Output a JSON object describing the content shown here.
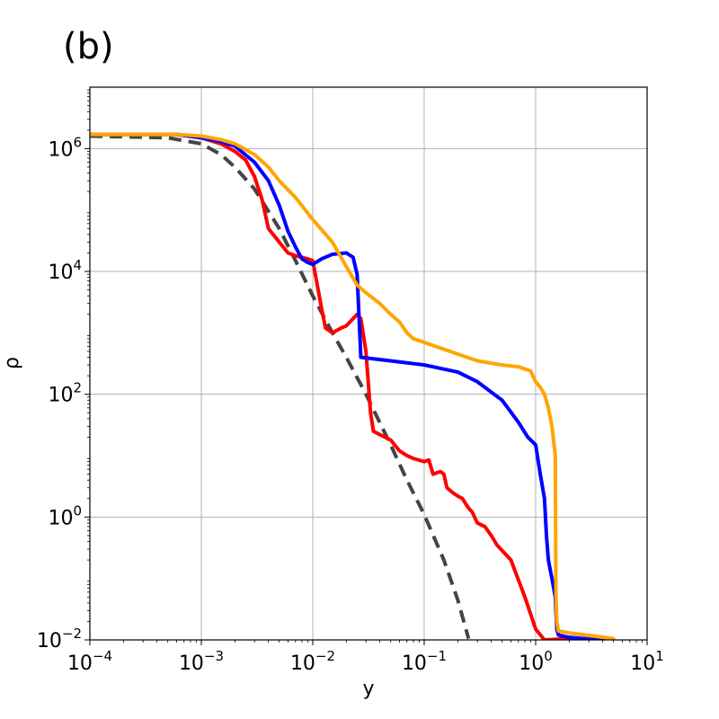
{
  "panel_label": "(b)",
  "chart_data": {
    "type": "line",
    "xlabel": "y",
    "ylabel": "ρ",
    "xscale": "log",
    "yscale": "log",
    "xlim": [
      0.0001,
      10
    ],
    "ylim": [
      0.01,
      10000000
    ],
    "grid": true,
    "x_ticks": [
      {
        "base": "10",
        "exp": "−4",
        "value": 0.0001
      },
      {
        "base": "10",
        "exp": "−3",
        "value": 0.001
      },
      {
        "base": "10",
        "exp": "−2",
        "value": 0.01
      },
      {
        "base": "10",
        "exp": "−1",
        "value": 0.1
      },
      {
        "base": "10",
        "exp": "0",
        "value": 1
      },
      {
        "base": "10",
        "exp": "1",
        "value": 10
      }
    ],
    "y_ticks": [
      {
        "base": "10",
        "exp": "−2",
        "value": 0.01
      },
      {
        "base": "10",
        "exp": "0",
        "value": 1
      },
      {
        "base": "10",
        "exp": "2",
        "value": 100
      },
      {
        "base": "10",
        "exp": "4",
        "value": 10000
      },
      {
        "base": "10",
        "exp": "6",
        "value": 1000000
      }
    ],
    "series": [
      {
        "color": "#444444",
        "dashed": true,
        "points": [
          [
            0.0001,
            1600000.0
          ],
          [
            0.0005,
            1500000.0
          ],
          [
            0.001,
            1200000.0
          ],
          [
            0.0015,
            800000.0
          ],
          [
            0.002,
            500000.0
          ],
          [
            0.003,
            220000.0
          ],
          [
            0.005,
            50000.0
          ],
          [
            0.007,
            15000.0
          ],
          [
            0.01,
            4000
          ],
          [
            0.015,
            1000
          ],
          [
            0.02,
            400
          ],
          [
            0.03,
            100
          ],
          [
            0.05,
            15
          ],
          [
            0.07,
            4
          ],
          [
            0.1,
            1.1
          ],
          [
            0.15,
            0.2
          ],
          [
            0.2,
            0.045
          ],
          [
            0.25,
            0.0105
          ]
        ]
      },
      {
        "color": "#ff0000",
        "dashed": false,
        "points": [
          [
            0.0001,
            1700000.0
          ],
          [
            0.0006,
            1700000.0
          ],
          [
            0.001,
            1500000.0
          ],
          [
            0.0015,
            1200000.0
          ],
          [
            0.002,
            900000.0
          ],
          [
            0.0025,
            650000.0
          ],
          [
            0.003,
            350000.0
          ],
          [
            0.0035,
            150000.0
          ],
          [
            0.004,
            50000.0
          ],
          [
            0.005,
            30000.0
          ],
          [
            0.006,
            20000.0
          ],
          [
            0.007,
            18000.0
          ],
          [
            0.008,
            17000.0
          ],
          [
            0.009,
            16000.0
          ],
          [
            0.01,
            15000.0
          ],
          [
            0.012,
            2500
          ],
          [
            0.013,
            1200
          ],
          [
            0.015,
            1000
          ],
          [
            0.018,
            1200
          ],
          [
            0.02,
            1300
          ],
          [
            0.025,
            2000
          ],
          [
            0.027,
            1700
          ],
          [
            0.03,
            500
          ],
          [
            0.033,
            50
          ],
          [
            0.035,
            25
          ],
          [
            0.04,
            22
          ],
          [
            0.05,
            18
          ],
          [
            0.06,
            12
          ],
          [
            0.07,
            10
          ],
          [
            0.08,
            9
          ],
          [
            0.1,
            8
          ],
          [
            0.11,
            8.5
          ],
          [
            0.12,
            5
          ],
          [
            0.14,
            5.5
          ],
          [
            0.15,
            5
          ],
          [
            0.16,
            3
          ],
          [
            0.18,
            2.5
          ],
          [
            0.2,
            2.2
          ],
          [
            0.22,
            2
          ],
          [
            0.25,
            1.4
          ],
          [
            0.27,
            1.2
          ],
          [
            0.3,
            0.8
          ],
          [
            0.35,
            0.7
          ],
          [
            0.4,
            0.5
          ],
          [
            0.45,
            0.35
          ],
          [
            0.6,
            0.2
          ],
          [
            0.8,
            0.05
          ],
          [
            1.0,
            0.015
          ],
          [
            1.2,
            0.01
          ],
          [
            2,
            0.0105
          ],
          [
            5,
            0.0095
          ]
        ]
      },
      {
        "color": "#0000ff",
        "dashed": false,
        "points": [
          [
            0.0001,
            1700000.0
          ],
          [
            0.0006,
            1700000.0
          ],
          [
            0.001,
            1500000.0
          ],
          [
            0.0015,
            1300000.0
          ],
          [
            0.002,
            1100000.0
          ],
          [
            0.003,
            600000.0
          ],
          [
            0.004,
            300000.0
          ],
          [
            0.005,
            120000.0
          ],
          [
            0.006,
            45000.0
          ],
          [
            0.007,
            25000.0
          ],
          [
            0.008,
            16000.0
          ],
          [
            0.009,
            14000.0
          ],
          [
            0.01,
            13000.0
          ],
          [
            0.012,
            16000.0
          ],
          [
            0.015,
            19000.0
          ],
          [
            0.02,
            20000.0
          ],
          [
            0.023,
            17000.0
          ],
          [
            0.025,
            9000
          ],
          [
            0.027,
            400
          ],
          [
            0.03,
            390
          ],
          [
            0.05,
            350
          ],
          [
            0.1,
            300
          ],
          [
            0.2,
            230
          ],
          [
            0.3,
            160
          ],
          [
            0.5,
            80
          ],
          [
            0.7,
            35
          ],
          [
            0.85,
            20
          ],
          [
            1.0,
            15
          ],
          [
            1.1,
            5
          ],
          [
            1.2,
            2
          ],
          [
            1.25,
            0.5
          ],
          [
            1.3,
            0.2
          ],
          [
            1.4,
            0.1
          ],
          [
            1.5,
            0.05
          ],
          [
            1.55,
            0.015
          ],
          [
            1.6,
            0.012
          ],
          [
            2,
            0.011
          ],
          [
            5,
            0.0095
          ]
        ]
      },
      {
        "color": "#ffa500",
        "dashed": false,
        "points": [
          [
            0.0001,
            1700000.0
          ],
          [
            0.0006,
            1700000.0
          ],
          [
            0.001,
            1600000.0
          ],
          [
            0.0015,
            1400000.0
          ],
          [
            0.002,
            1200000.0
          ],
          [
            0.003,
            800000.0
          ],
          [
            0.004,
            500000.0
          ],
          [
            0.005,
            300000.0
          ],
          [
            0.007,
            160000.0
          ],
          [
            0.01,
            70000.0
          ],
          [
            0.015,
            30000.0
          ],
          [
            0.02,
            12000.0
          ],
          [
            0.025,
            6000
          ],
          [
            0.03,
            4500
          ],
          [
            0.04,
            3000
          ],
          [
            0.05,
            2000
          ],
          [
            0.06,
            1500
          ],
          [
            0.07,
            1000
          ],
          [
            0.08,
            800
          ],
          [
            0.1,
            700
          ],
          [
            0.2,
            450
          ],
          [
            0.3,
            350
          ],
          [
            0.5,
            300
          ],
          [
            0.7,
            280
          ],
          [
            0.9,
            240
          ],
          [
            1.0,
            160
          ],
          [
            1.1,
            130
          ],
          [
            1.2,
            100
          ],
          [
            1.3,
            60
          ],
          [
            1.4,
            30
          ],
          [
            1.5,
            10
          ],
          [
            1.52,
            0.05
          ],
          [
            1.55,
            0.02
          ],
          [
            1.6,
            0.014
          ],
          [
            2,
            0.013
          ],
          [
            5,
            0.0105
          ]
        ]
      }
    ]
  }
}
